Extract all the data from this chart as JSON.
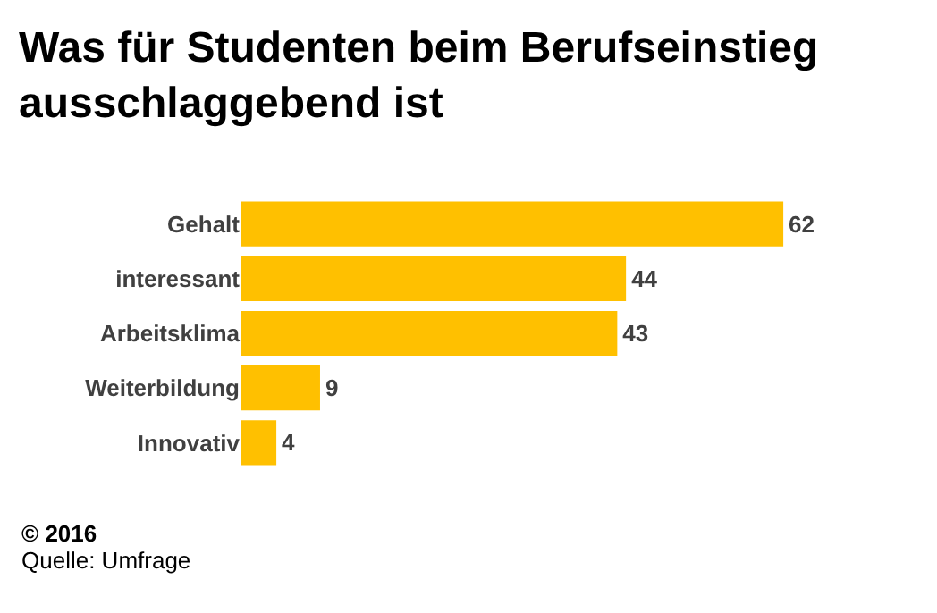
{
  "chart_data": {
    "type": "bar",
    "orientation": "horizontal",
    "title": "Was für Studenten beim Berufseinstieg ausschlaggebend ist",
    "categories": [
      "Gehalt",
      "interessant",
      "Arbeitsklima",
      "Weiterbildung",
      "Innovativ"
    ],
    "values": [
      62,
      44,
      43,
      9,
      4
    ],
    "color": "#ffc000",
    "data_labels": true,
    "grid": false,
    "annotations": [
      "© 2016",
      "Quelle: Umfrage"
    ]
  }
}
